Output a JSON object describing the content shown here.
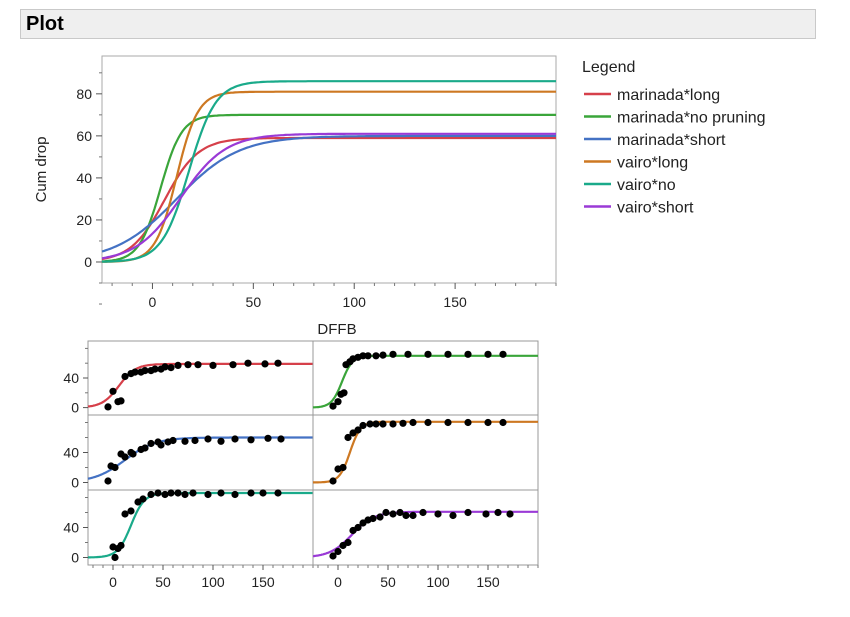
{
  "header": {
    "title": "Plot"
  },
  "chart_data": [
    {
      "type": "line",
      "xlabel": "DFFB",
      "ylabel": "Cum drop",
      "xlim": [
        -25,
        200
      ],
      "ylim": [
        -10,
        98
      ],
      "xticks": [
        0,
        50,
        100,
        150
      ],
      "yticks": [
        0,
        20,
        40,
        60,
        80
      ],
      "legend": {
        "title": "Legend",
        "position": "right"
      },
      "series": [
        {
          "name": "marinada*long",
          "color": "#d6404a",
          "asymptote": 59,
          "midpoint": 6,
          "slope": 0.12
        },
        {
          "name": "marinada*no pruning",
          "color": "#3aa53a",
          "asymptote": 70,
          "midpoint": 4,
          "slope": 0.19
        },
        {
          "name": "marinada*short",
          "color": "#4472c4",
          "asymptote": 60,
          "midpoint": 12,
          "slope": 0.065
        },
        {
          "name": "vairo*long",
          "color": "#cd7822",
          "asymptote": 81,
          "midpoint": 12,
          "slope": 0.19
        },
        {
          "name": "vairo*no",
          "color": "#1aaa8a",
          "asymptote": 86,
          "midpoint": 18,
          "slope": 0.15
        },
        {
          "name": "vairo*short",
          "color": "#9a3ad6",
          "asymptote": 61,
          "midpoint": 14,
          "slope": 0.09
        }
      ]
    },
    {
      "type": "scatter",
      "xlim": [
        -25,
        200
      ],
      "ylim": [
        -10,
        90
      ],
      "xticks": [
        0,
        50,
        100,
        150
      ],
      "yticks": [
        0,
        40
      ],
      "panels": [
        {
          "series": "marinada*long",
          "color": "#d6404a",
          "asymptote": 59,
          "midpoint": 6,
          "slope": 0.12,
          "points": [
            [
              -5,
              1
            ],
            [
              0,
              22
            ],
            [
              5,
              8
            ],
            [
              8,
              9
            ],
            [
              12,
              42
            ],
            [
              18,
              46
            ],
            [
              22,
              48
            ],
            [
              28,
              48
            ],
            [
              32,
              50
            ],
            [
              38,
              50
            ],
            [
              42,
              52
            ],
            [
              48,
              52
            ],
            [
              52,
              55
            ],
            [
              58,
              54
            ],
            [
              65,
              57
            ],
            [
              75,
              58
            ],
            [
              85,
              58
            ],
            [
              100,
              57
            ],
            [
              120,
              58
            ],
            [
              135,
              60
            ],
            [
              152,
              59
            ],
            [
              165,
              60
            ]
          ]
        },
        {
          "series": "marinada*no pruning",
          "color": "#3aa53a",
          "asymptote": 70,
          "midpoint": 4,
          "slope": 0.19,
          "points": [
            [
              -5,
              2
            ],
            [
              0,
              8
            ],
            [
              3,
              18
            ],
            [
              6,
              20
            ],
            [
              8,
              58
            ],
            [
              12,
              62
            ],
            [
              15,
              66
            ],
            [
              20,
              68
            ],
            [
              25,
              70
            ],
            [
              30,
              70
            ],
            [
              38,
              70
            ],
            [
              45,
              71
            ],
            [
              55,
              72
            ],
            [
              70,
              72
            ],
            [
              90,
              72
            ],
            [
              110,
              72
            ],
            [
              130,
              72
            ],
            [
              150,
              72
            ],
            [
              165,
              72
            ]
          ]
        },
        {
          "series": "marinada*short",
          "color": "#4472c4",
          "asymptote": 60,
          "midpoint": 12,
          "slope": 0.065,
          "points": [
            [
              -5,
              2
            ],
            [
              -2,
              22
            ],
            [
              2,
              20
            ],
            [
              8,
              38
            ],
            [
              12,
              34
            ],
            [
              18,
              40
            ],
            [
              20,
              38
            ],
            [
              28,
              44
            ],
            [
              32,
              46
            ],
            [
              38,
              52
            ],
            [
              45,
              54
            ],
            [
              48,
              50
            ],
            [
              55,
              54
            ],
            [
              60,
              56
            ],
            [
              72,
              55
            ],
            [
              82,
              56
            ],
            [
              95,
              58
            ],
            [
              108,
              55
            ],
            [
              122,
              58
            ],
            [
              138,
              57
            ],
            [
              155,
              59
            ],
            [
              168,
              58
            ]
          ]
        },
        {
          "series": "vairo*long",
          "color": "#cd7822",
          "asymptote": 81,
          "midpoint": 12,
          "slope": 0.19,
          "points": [
            [
              -5,
              2
            ],
            [
              0,
              18
            ],
            [
              5,
              20
            ],
            [
              10,
              60
            ],
            [
              15,
              66
            ],
            [
              20,
              70
            ],
            [
              25,
              76
            ],
            [
              32,
              78
            ],
            [
              38,
              78
            ],
            [
              45,
              78
            ],
            [
              55,
              78
            ],
            [
              65,
              79
            ],
            [
              75,
              80
            ],
            [
              90,
              80
            ],
            [
              110,
              80
            ],
            [
              130,
              80
            ],
            [
              150,
              80
            ],
            [
              165,
              80
            ]
          ]
        },
        {
          "series": "vairo*no",
          "color": "#1aaa8a",
          "asymptote": 86,
          "midpoint": 18,
          "slope": 0.15,
          "points": [
            [
              0,
              14
            ],
            [
              2,
              0
            ],
            [
              5,
              12
            ],
            [
              8,
              16
            ],
            [
              12,
              58
            ],
            [
              18,
              62
            ],
            [
              25,
              74
            ],
            [
              30,
              78
            ],
            [
              38,
              84
            ],
            [
              45,
              86
            ],
            [
              52,
              84
            ],
            [
              58,
              86
            ],
            [
              65,
              86
            ],
            [
              72,
              84
            ],
            [
              80,
              86
            ],
            [
              95,
              84
            ],
            [
              108,
              86
            ],
            [
              122,
              84
            ],
            [
              138,
              86
            ],
            [
              150,
              86
            ],
            [
              165,
              86
            ]
          ]
        },
        {
          "series": "vairo*short",
          "color": "#9a3ad6",
          "asymptote": 61,
          "midpoint": 14,
          "slope": 0.09,
          "points": [
            [
              -5,
              2
            ],
            [
              0,
              8
            ],
            [
              5,
              16
            ],
            [
              10,
              20
            ],
            [
              15,
              36
            ],
            [
              20,
              40
            ],
            [
              25,
              46
            ],
            [
              30,
              50
            ],
            [
              35,
              52
            ],
            [
              42,
              54
            ],
            [
              48,
              60
            ],
            [
              55,
              58
            ],
            [
              62,
              60
            ],
            [
              68,
              56
            ],
            [
              75,
              56
            ],
            [
              85,
              60
            ],
            [
              100,
              58
            ],
            [
              115,
              56
            ],
            [
              130,
              60
            ],
            [
              148,
              58
            ],
            [
              160,
              60
            ],
            [
              172,
              58
            ]
          ]
        }
      ]
    }
  ]
}
